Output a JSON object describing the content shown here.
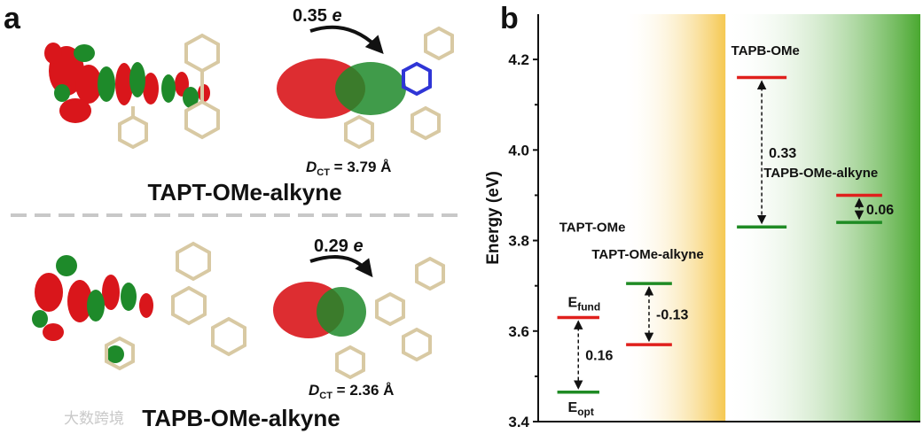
{
  "panel_a": {
    "letter": "a",
    "top": {
      "charge": "0.35",
      "charge_unit": "e",
      "dct_symbol": "D",
      "dct_sub": "CT",
      "dct_value": " = 3.79 Å",
      "name": "TAPT-OMe-alkyne"
    },
    "bottom": {
      "charge": "0.29",
      "charge_unit": "e",
      "dct_symbol": "D",
      "dct_sub": "CT",
      "dct_value": " = 2.36 Å",
      "name": "TAPB-OMe-alkyne"
    },
    "watermark": "大数跨境",
    "colors": {
      "red_lobe": "#d9161b",
      "green_lobe": "#1e8a2a",
      "stick": "#d8c9a3",
      "nitrogen": "#2f35d6"
    }
  },
  "panel_b": {
    "letter": "b"
  },
  "chart_data": {
    "type": "energy-level diagram",
    "ylabel": "Energy (eV)",
    "ylim": [
      3.4,
      4.3
    ],
    "yticks": [
      "3.4",
      "3.6",
      "3.8",
      "4.0",
      "4.2"
    ],
    "xlim": [
      0,
      10
    ],
    "backgrounds": [
      {
        "x0": 2.2,
        "x1": 4.9,
        "color": "#f5c851"
      },
      {
        "x0": 4.9,
        "x1": 10,
        "color": "#4aa830"
      }
    ],
    "molecules": [
      {
        "name": "TAPT-OMe",
        "x0": 0.5,
        "x1": 1.6,
        "fund": 3.63,
        "opt": 3.465,
        "diff": "0.16",
        "fund_label_main": "E",
        "fund_label_sub": "fund",
        "opt_label_main": "E",
        "opt_label_sub": "opt",
        "name_x": 0.55,
        "name_y": 3.82
      },
      {
        "name": "TAPT-OMe-alkyne",
        "x0": 2.3,
        "x1": 3.5,
        "fund": 3.57,
        "opt": 3.705,
        "diff": "-0.13",
        "name_x": 1.4,
        "name_y": 3.76
      },
      {
        "name": "TAPB-OMe",
        "x0": 5.2,
        "x1": 6.5,
        "fund": 4.16,
        "opt": 3.83,
        "diff": "0.33",
        "name_x": 5.05,
        "name_y": 4.21
      },
      {
        "name": "TAPB-OMe-alkyne",
        "x0": 7.8,
        "x1": 9.0,
        "fund": 3.9,
        "opt": 3.84,
        "diff": "0.06",
        "name_x": 5.9,
        "name_y": 3.94
      }
    ],
    "colors": {
      "fund": "#e0201c",
      "opt": "#1f8b24"
    }
  }
}
